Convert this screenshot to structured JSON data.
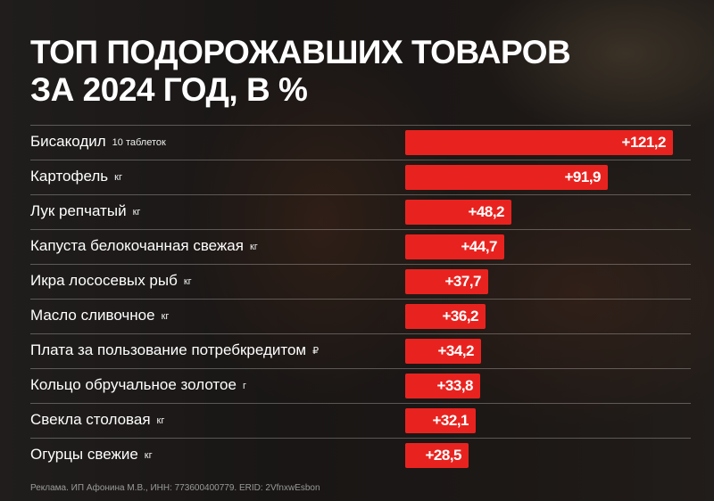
{
  "title_line1": "ТОП ПОДОРОЖАВШИХ ТОВАРОВ",
  "title_line2": "ЗА 2024 ГОД, В %",
  "footnote": "Реклама. ИП Афонина М.В., ИНН: 773600400779. ERID: 2VfnxwEsbon",
  "colors": {
    "bar": "#e8231f",
    "text": "#ffffff"
  },
  "chart_data": {
    "type": "bar",
    "orientation": "horizontal",
    "title": "ТОП ПОДОРОЖАВШИХ ТОВАРОВ ЗА 2024 ГОД, В %",
    "categories": [
      "Бисакодил",
      "Картофель",
      "Лук репчатый",
      "Капуста белокочанная свежая",
      "Икра лососевых рыб",
      "Масло сливочное",
      "Плата за пользование потребкредитом",
      "Кольцо обручальное золотое",
      "Свекла столовая",
      "Огурцы свежие"
    ],
    "units": [
      "10 таблеток",
      "кг",
      "кг",
      "кг",
      "кг",
      "кг",
      "₽",
      "г",
      "кг",
      "кг"
    ],
    "values": [
      121.2,
      91.9,
      48.2,
      44.7,
      37.7,
      36.2,
      34.2,
      33.8,
      32.1,
      28.5
    ],
    "value_labels": [
      "+121,2",
      "+91,9",
      "+48,2",
      "+44,7",
      "+37,7",
      "+36,2",
      "+34,2",
      "+33,8",
      "+32,1",
      "+28,5"
    ]
  }
}
